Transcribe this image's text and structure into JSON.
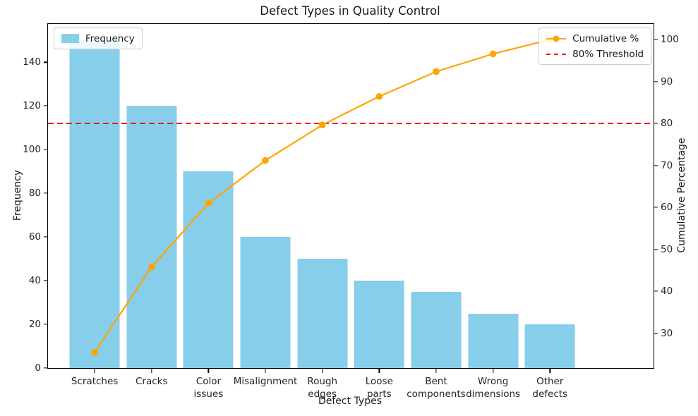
{
  "chart_data": {
    "type": "bar",
    "subtype": "pareto (bar + cumulative line, dual y-axis)",
    "title": "Defect Types in Quality Control",
    "xlabel": "Defect Types",
    "ylabel_left": "Frequency",
    "ylabel_right": "Cumulative Percentage",
    "categories": [
      "Scratches",
      "Cracks",
      "Color issues",
      "Misalignment",
      "Rough edges",
      "Loose parts",
      "Bent components",
      "Wrong dimensions",
      "Other defects"
    ],
    "x_tick_labels": [
      "Scratches",
      "Cracks",
      "Color\nissues",
      "Misalignment",
      "Rough\nedges",
      "Loose\nparts",
      "Bent\ncomponents",
      "Wrong\ndimensions",
      "Other\ndefects"
    ],
    "series": [
      {
        "name": "Frequency",
        "type": "bar",
        "axis": "left",
        "color": "#87CEEB",
        "values": [
          150,
          120,
          90,
          60,
          50,
          40,
          35,
          25,
          20
        ]
      },
      {
        "name": "Cumulative %",
        "type": "line",
        "axis": "right",
        "color": "#FFA500",
        "marker": "circle",
        "values": [
          25.42,
          45.76,
          61.02,
          71.19,
          79.66,
          86.44,
          92.37,
          96.61,
          100.0
        ]
      }
    ],
    "threshold": {
      "label": "80% Threshold",
      "value": 80,
      "color": "#FF0000",
      "style": "dashed",
      "axis": "right"
    },
    "y_left": {
      "ticks": [
        0,
        20,
        40,
        60,
        80,
        100,
        120,
        140
      ],
      "lim": [
        0,
        157.5
      ]
    },
    "y_right": {
      "ticks": [
        30,
        40,
        50,
        60,
        70,
        80,
        90,
        100
      ],
      "lim": [
        21.69,
        103.73
      ]
    },
    "legend_left": {
      "position": "upper left",
      "entries": [
        {
          "label": "Frequency",
          "swatch": "#87CEEB"
        }
      ]
    },
    "legend_right": {
      "position": "upper right",
      "entries": [
        {
          "label": "Cumulative %",
          "color": "#FFA500"
        },
        {
          "label": "80% Threshold",
          "color": "#FF0000"
        }
      ]
    },
    "grid": false,
    "colors": {
      "bar": "#87CEEB",
      "line": "#FFA500",
      "threshold": "#FF0000",
      "spine": "#000000",
      "background": "#ffffff"
    }
  }
}
